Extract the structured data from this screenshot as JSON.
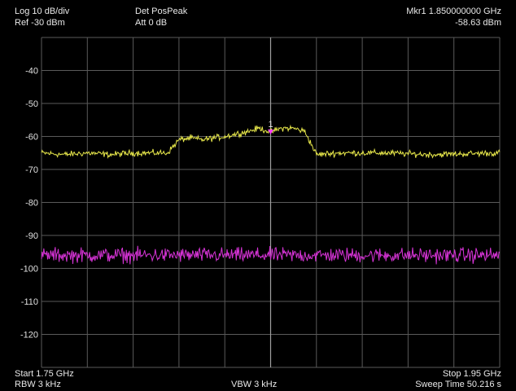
{
  "header": {
    "scale": "Log 10 dB/div",
    "ref": "Ref -30 dBm",
    "detector": "Det PosPeak",
    "attenuation": "Att 0 dB",
    "marker_label": "Mkr1  1.850000000 GHz",
    "marker_level": "-58.63 dBm"
  },
  "footer": {
    "start": "Start 1.75 GHz",
    "rbw": "RBW 3 kHz",
    "vbw": "VBW 3 kHz",
    "stop": "Stop 1.95 GHz",
    "sweep_time": "Sweep Time 50.216 s"
  },
  "colors": {
    "background": "#000000",
    "grid": "#5a5a5a",
    "trace1": "#e6e64a",
    "trace2": "#d633d6",
    "marker": "#ff40ff",
    "text": "#e8e8e8"
  },
  "chart_data": {
    "type": "line",
    "xlabel": "",
    "ylabel": "",
    "x_start_ghz": 1.75,
    "x_stop_ghz": 1.95,
    "ylim": [
      -130,
      -30
    ],
    "yticks": [
      -40,
      -50,
      -60,
      -70,
      -80,
      -90,
      -100,
      -110,
      -120
    ],
    "grid": true,
    "series": [
      {
        "color": "yellow",
        "x": [
          1.75,
          1.76,
          1.77,
          1.78,
          1.79,
          1.8,
          1.805,
          1.81,
          1.815,
          1.82,
          1.83,
          1.84,
          1.845,
          1.85,
          1.855,
          1.86,
          1.865,
          1.87,
          1.88,
          1.9,
          1.92,
          1.95
        ],
        "y": [
          -65,
          -65.5,
          -65,
          -65.5,
          -65,
          -65,
          -65,
          -61,
          -60.5,
          -61,
          -60,
          -58.5,
          -57.5,
          -58.6,
          -57.5,
          -57.5,
          -58.5,
          -65.5,
          -65,
          -65,
          -65.5,
          -65
        ]
      },
      {
        "color": "magenta",
        "x": [
          1.75,
          1.95
        ],
        "y": [
          -96,
          -96
        ]
      }
    ],
    "markers": [
      {
        "label": "1",
        "x": 1.85,
        "y": -58.63
      }
    ]
  }
}
